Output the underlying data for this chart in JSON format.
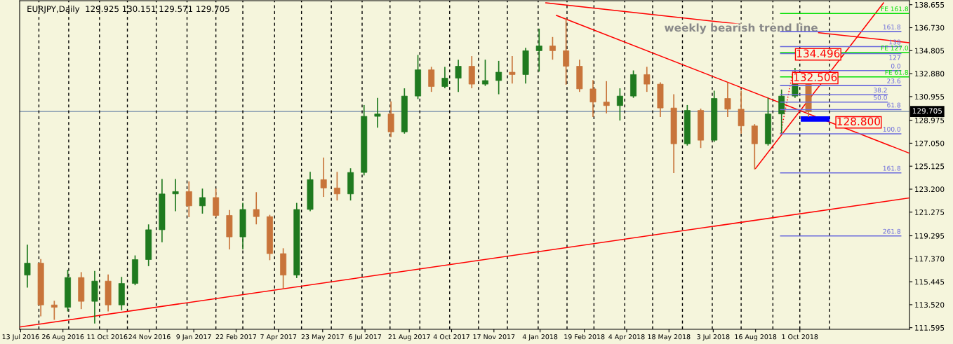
{
  "chart_data": {
    "type": "candlestick",
    "title": "EURJPY,Daily  129.925 130.151 129.571 129.705",
    "x": [
      "2016-07-20",
      "2016-08-03",
      "2016-08-17",
      "2016-08-31",
      "2016-09-14",
      "2016-09-28",
      "2016-10-12",
      "2016-10-26",
      "2016-11-09",
      "2016-11-23",
      "2016-12-07",
      "2016-12-21",
      "2017-01-04",
      "2017-01-18",
      "2017-02-01",
      "2017-02-15",
      "2017-03-01",
      "2017-03-15",
      "2017-03-29",
      "2017-04-12",
      "2017-04-26",
      "2017-05-10",
      "2017-05-24",
      "2017-06-07",
      "2017-06-21",
      "2017-07-05",
      "2017-07-19",
      "2017-08-02",
      "2017-08-16",
      "2017-08-30",
      "2017-09-13",
      "2017-09-27",
      "2017-10-11",
      "2017-10-25",
      "2017-11-08",
      "2017-11-22",
      "2017-12-06",
      "2017-12-20",
      "2018-01-03",
      "2018-01-17",
      "2018-01-31",
      "2018-02-14",
      "2018-02-28",
      "2018-03-14",
      "2018-03-28",
      "2018-04-11",
      "2018-04-25",
      "2018-05-09",
      "2018-05-23",
      "2018-06-06",
      "2018-06-20",
      "2018-07-04",
      "2018-07-18",
      "2018-08-01",
      "2018-08-15",
      "2018-08-29",
      "2018-09-12",
      "2018-09-26",
      "2018-10-10"
    ],
    "ohlc": [
      [
        116.0,
        118.5,
        115.0,
        117.0
      ],
      [
        117.0,
        117.3,
        112.6,
        113.5
      ],
      [
        113.5,
        113.8,
        112.3,
        113.3
      ],
      [
        113.3,
        116.4,
        113.0,
        115.8
      ],
      [
        115.8,
        116.2,
        113.2,
        113.8
      ],
      [
        113.8,
        116.3,
        112.0,
        115.5
      ],
      [
        115.5,
        116.0,
        113.0,
        113.5
      ],
      [
        113.5,
        115.8,
        113.1,
        115.3
      ],
      [
        115.3,
        117.6,
        115.2,
        117.3
      ],
      [
        117.3,
        120.2,
        116.8,
        119.8
      ],
      [
        119.8,
        124.0,
        118.8,
        122.8
      ],
      [
        122.8,
        124.0,
        121.4,
        123.0
      ],
      [
        123.0,
        123.8,
        120.9,
        121.8
      ],
      [
        121.8,
        123.2,
        121.2,
        122.5
      ],
      [
        122.5,
        123.2,
        120.9,
        121.0
      ],
      [
        121.0,
        121.4,
        118.2,
        119.2
      ],
      [
        119.2,
        122.0,
        118.2,
        121.5
      ],
      [
        121.5,
        122.9,
        120.3,
        120.9
      ],
      [
        120.9,
        121.0,
        117.3,
        117.8
      ],
      [
        117.8,
        118.2,
        114.9,
        116.0
      ],
      [
        116.0,
        122.0,
        115.8,
        121.5
      ],
      [
        121.5,
        124.6,
        121.4,
        124.0
      ],
      [
        124.0,
        125.8,
        122.6,
        123.3
      ],
      [
        123.3,
        124.6,
        122.3,
        122.8
      ],
      [
        122.8,
        124.9,
        122.3,
        124.6
      ],
      [
        124.6,
        130.2,
        124.4,
        129.3
      ],
      [
        129.3,
        130.8,
        128.4,
        129.5
      ],
      [
        129.5,
        130.5,
        127.6,
        128.0
      ],
      [
        128.0,
        131.6,
        127.9,
        131.0
      ],
      [
        131.0,
        134.4,
        130.8,
        133.2
      ],
      [
        133.2,
        133.4,
        131.4,
        131.8
      ],
      [
        131.8,
        133.4,
        131.7,
        132.5
      ],
      [
        132.5,
        134.0,
        131.4,
        133.5
      ],
      [
        133.5,
        134.3,
        131.7,
        132.0
      ],
      [
        132.0,
        134.0,
        131.9,
        132.3
      ],
      [
        132.3,
        133.9,
        131.2,
        133.0
      ],
      [
        133.0,
        134.3,
        132.1,
        132.8
      ],
      [
        132.8,
        135.0,
        132.1,
        134.8
      ],
      [
        134.8,
        136.6,
        133.1,
        135.2
      ],
      [
        135.2,
        135.9,
        134.1,
        134.8
      ],
      [
        134.8,
        137.5,
        132.0,
        133.5
      ],
      [
        133.5,
        134.0,
        131.4,
        131.6
      ],
      [
        131.6,
        132.3,
        129.3,
        130.5
      ],
      [
        130.5,
        132.2,
        129.6,
        130.2
      ],
      [
        130.2,
        131.6,
        129.0,
        131.0
      ],
      [
        131.0,
        133.1,
        130.9,
        132.8
      ],
      [
        132.8,
        133.4,
        131.4,
        132.0
      ],
      [
        132.0,
        132.1,
        129.3,
        130.0
      ],
      [
        130.0,
        131.1,
        124.6,
        127.0
      ],
      [
        127.0,
        130.2,
        126.9,
        129.8
      ],
      [
        129.8,
        129.9,
        126.7,
        127.3
      ],
      [
        127.3,
        131.4,
        127.2,
        130.8
      ],
      [
        130.8,
        132.1,
        129.3,
        129.9
      ],
      [
        129.9,
        131.4,
        127.9,
        128.5
      ],
      [
        128.5,
        128.6,
        124.9,
        127.0
      ],
      [
        127.0,
        130.8,
        126.9,
        129.5
      ],
      [
        129.5,
        131.5,
        127.9,
        131.0
      ],
      [
        131.0,
        133.3,
        130.9,
        132.0
      ],
      [
        132.0,
        132.1,
        129.3,
        129.7
      ]
    ],
    "colors": [
      "#1f7a1f",
      "#c8743a",
      "#c8743a",
      "#1f7a1f",
      "#c8743a",
      "#1f7a1f",
      "#c8743a",
      "#1f7a1f",
      "#1f7a1f",
      "#1f7a1f",
      "#1f7a1f",
      "#1f7a1f",
      "#c8743a",
      "#1f7a1f",
      "#c8743a",
      "#c8743a",
      "#1f7a1f",
      "#c8743a",
      "#c8743a",
      "#c8743a",
      "#1f7a1f",
      "#1f7a1f",
      "#c8743a",
      "#c8743a",
      "#1f7a1f",
      "#1f7a1f",
      "#1f7a1f",
      "#c8743a",
      "#1f7a1f",
      "#1f7a1f",
      "#c8743a",
      "#1f7a1f",
      "#1f7a1f",
      "#c8743a",
      "#1f7a1f",
      "#1f7a1f",
      "#c8743a",
      "#1f7a1f",
      "#1f7a1f",
      "#c8743a",
      "#c8743a",
      "#c8743a",
      "#c8743a",
      "#c8743a",
      "#1f7a1f",
      "#1f7a1f",
      "#c8743a",
      "#c8743a",
      "#c8743a",
      "#1f7a1f",
      "#c8743a",
      "#1f7a1f",
      "#c8743a",
      "#c8743a",
      "#c8743a",
      "#1f7a1f",
      "#1f7a1f",
      "#1f7a1f",
      "#c8743a"
    ],
    "series": [
      {
        "type": "line",
        "color": "#ff0000",
        "x": [
          "2016-07-12",
          "2019-01-23"
        ],
        "values": [
          111.65,
          122.47
        ]
      },
      {
        "type": "line",
        "color": "#ff0000",
        "x": [
          "2018-01-10",
          "2019-01-23"
        ],
        "values": [
          138.81,
          135.47
        ]
      },
      {
        "type": "line",
        "color": "#ff0000",
        "x": [
          "2018-01-21",
          "2019-01-23"
        ],
        "values": [
          137.76,
          126.21
        ]
      },
      {
        "type": "line",
        "color": "#ff0000",
        "x": [
          "2018-08-16",
          "2018-12-27"
        ],
        "values": [
          124.93,
          138.81
        ]
      },
      {
        "type": "line",
        "color": "#ff0000",
        "line_style": "dotted",
        "x": [
          "2018-09-11",
          "2018-09-24"
        ],
        "values": [
          127.84,
          133.13
        ]
      },
      {
        "type": "line",
        "name": "FE 161.8",
        "color": "#00e000",
        "x": [
          "2018-09-11",
          "2019-01-22"
        ],
        "values": [
          137.92,
          137.92
        ]
      },
      {
        "type": "line",
        "name": "FE 127.0",
        "color": "#00e000",
        "x": [
          "2018-09-11",
          "2019-01-22"
        ],
        "values": [
          134.64,
          134.64
        ]
      },
      {
        "type": "line",
        "name": "FE 61.8",
        "color": "#00e000",
        "x": [
          "2018-09-11",
          "2019-01-22"
        ],
        "values": [
          132.6,
          132.6
        ]
      },
      {
        "type": "line",
        "name": "161.8",
        "color": "#6b6bdc",
        "x": [
          "2018-09-11",
          "2019-01-14"
        ],
        "values": [
          136.4,
          136.4
        ]
      },
      {
        "type": "line",
        "name": "138",
        "color": "#6b6bdc",
        "x": [
          "2018-09-11",
          "2019-01-14"
        ],
        "values": [
          135.14,
          135.14
        ]
      },
      {
        "type": "line",
        "name": "127",
        "color": "#6b6bdc",
        "x": [
          "2018-09-11",
          "2019-01-14"
        ],
        "values": [
          134.56,
          134.56
        ]
      },
      {
        "type": "line",
        "name": "0.0",
        "color": "#6b6bdc",
        "x": [
          "2018-09-11",
          "2019-01-14"
        ],
        "values": [
          133.13,
          133.13
        ]
      },
      {
        "type": "line",
        "name": "23.6",
        "color": "#6b6bdc",
        "x": [
          "2018-09-11",
          "2019-01-14"
        ],
        "values": [
          131.88,
          131.88
        ]
      },
      {
        "type": "line",
        "name": "38.2",
        "color": "#6b6bdc",
        "x": [
          "2018-09-11",
          "2018-12-31"
        ],
        "values": [
          131.11,
          131.11
        ]
      },
      {
        "type": "line",
        "name": "50.0",
        "color": "#6b6bdc",
        "x": [
          "2018-09-11",
          "2018-12-31"
        ],
        "values": [
          130.49,
          130.49
        ]
      },
      {
        "type": "line",
        "name": "61.8",
        "color": "#6b6bdc",
        "x": [
          "2018-09-11",
          "2019-01-14"
        ],
        "values": [
          129.86,
          129.86
        ]
      },
      {
        "type": "line",
        "name": "100.0",
        "color": "#6b6bdc",
        "x": [
          "2018-09-11",
          "2019-01-14"
        ],
        "values": [
          127.84,
          127.84
        ]
      },
      {
        "type": "line",
        "name": "161.8",
        "color": "#6b6bdc",
        "x": [
          "2018-09-11",
          "2019-01-14"
        ],
        "values": [
          124.57,
          124.57
        ]
      },
      {
        "type": "line",
        "name": "261.8",
        "color": "#6b6bdc",
        "x": [
          "2018-09-11",
          "2019-01-14"
        ],
        "values": [
          119.28,
          119.28
        ]
      },
      {
        "type": "bar",
        "color": "#0000ff",
        "x": [
          "2018-10-17"
        ],
        "base": [
          128.85
        ],
        "values": [
          0.46
        ]
      }
    ],
    "annotations": [
      {
        "text": "weekly bearish trend line",
        "x": "2018-08-01",
        "y": 136.65
      },
      {
        "text": "134.496",
        "x": "2018-09-27",
        "y": 134.496
      },
      {
        "text": "132.506",
        "x": "2018-09-24",
        "y": 132.506
      },
      {
        "text": "128.800",
        "x": "2018-11-08",
        "y": 128.8
      }
    ],
    "ref_lines": [
      {
        "axis": "y",
        "value": 129.705,
        "label": "129.705",
        "color": "#7088a8"
      },
      {
        "axis": "x",
        "value": "2016-08-01",
        "line_style": "dashed",
        "color": "#000000"
      },
      {
        "axis": "x",
        "value": "2016-09-01",
        "line_style": "dashed",
        "color": "#000000"
      },
      {
        "axis": "x",
        "value": "2016-10-03",
        "line_style": "dashed",
        "color": "#000000"
      },
      {
        "axis": "x",
        "value": "2016-11-01",
        "line_style": "dashed",
        "color": "#000000"
      },
      {
        "axis": "x",
        "value": "2016-12-01",
        "line_style": "dashed",
        "color": "#000000"
      },
      {
        "axis": "x",
        "value": "2017-01-02",
        "line_style": "dashed",
        "color": "#000000"
      },
      {
        "axis": "x",
        "value": "2017-02-01",
        "line_style": "dashed",
        "color": "#000000"
      },
      {
        "axis": "x",
        "value": "2017-03-01",
        "line_style": "dashed",
        "color": "#000000"
      },
      {
        "axis": "x",
        "value": "2017-04-03",
        "line_style": "dashed",
        "color": "#000000"
      },
      {
        "axis": "x",
        "value": "2017-05-01",
        "line_style": "dashed",
        "color": "#000000"
      },
      {
        "axis": "x",
        "value": "2017-06-01",
        "line_style": "dashed",
        "color": "#000000"
      },
      {
        "axis": "x",
        "value": "2017-07-03",
        "line_style": "dashed",
        "color": "#000000"
      },
      {
        "axis": "x",
        "value": "2017-08-01",
        "line_style": "dashed",
        "color": "#000000"
      },
      {
        "axis": "x",
        "value": "2017-09-01",
        "line_style": "dashed",
        "color": "#000000"
      },
      {
        "axis": "x",
        "value": "2017-10-02",
        "line_style": "dashed",
        "color": "#000000"
      },
      {
        "axis": "x",
        "value": "2017-11-01",
        "line_style": "dashed",
        "color": "#000000"
      },
      {
        "axis": "x",
        "value": "2017-12-01",
        "line_style": "dashed",
        "color": "#000000"
      },
      {
        "axis": "x",
        "value": "2018-01-02",
        "line_style": "dashed",
        "color": "#000000"
      },
      {
        "axis": "x",
        "value": "2018-02-01",
        "line_style": "dashed",
        "color": "#000000"
      },
      {
        "axis": "x",
        "value": "2018-03-01",
        "line_style": "dashed",
        "color": "#000000"
      },
      {
        "axis": "x",
        "value": "2018-04-02",
        "line_style": "dashed",
        "color": "#000000"
      },
      {
        "axis": "x",
        "value": "2018-05-01",
        "line_style": "dashed",
        "color": "#000000"
      },
      {
        "axis": "x",
        "value": "2018-06-01",
        "line_style": "dashed",
        "color": "#000000"
      },
      {
        "axis": "x",
        "value": "2018-07-02",
        "line_style": "dashed",
        "color": "#000000"
      },
      {
        "axis": "x",
        "value": "2018-08-01",
        "line_style": "dashed",
        "color": "#000000"
      },
      {
        "axis": "x",
        "value": "2018-09-03",
        "line_style": "dashed",
        "color": "#000000"
      },
      {
        "axis": "x",
        "value": "2018-10-01",
        "line_style": "dashed",
        "color": "#000000"
      },
      {
        "axis": "x",
        "value": "2018-11-01",
        "line_style": "dashed",
        "color": "#000000"
      }
    ],
    "xlim": [
      "2016-07-12",
      "2019-01-23"
    ],
    "xticks": [
      {
        "value": "2016-07-13",
        "label": "13 Jul 2016"
      },
      {
        "value": "2016-08-26",
        "label": "26 Aug 2016"
      },
      {
        "value": "2016-10-11",
        "label": "11 Oct 2016"
      },
      {
        "value": "2016-11-24",
        "label": "24 Nov 2016"
      },
      {
        "value": "2017-01-09",
        "label": "9 Jan 2017"
      },
      {
        "value": "2017-02-22",
        "label": "22 Feb 2017"
      },
      {
        "value": "2017-04-07",
        "label": "7 Apr 2017"
      },
      {
        "value": "2017-05-23",
        "label": "23 May 2017"
      },
      {
        "value": "2017-07-06",
        "label": "6 Jul 2017"
      },
      {
        "value": "2017-08-21",
        "label": "21 Aug 2017"
      },
      {
        "value": "2017-10-04",
        "label": "4 Oct 2017"
      },
      {
        "value": "2017-11-17",
        "label": "17 Nov 2017"
      },
      {
        "value": "2018-01-04",
        "label": "4 Jan 2018"
      },
      {
        "value": "2018-02-19",
        "label": "19 Feb 2018"
      },
      {
        "value": "2018-04-04",
        "label": "4 Apr 2018"
      },
      {
        "value": "2018-05-18",
        "label": "18 May 2018"
      },
      {
        "value": "2018-07-03",
        "label": "3 Jul 2018"
      },
      {
        "value": "2018-08-16",
        "label": "16 Aug 2018"
      },
      {
        "value": "2018-10-01",
        "label": "1 Oct 2018"
      }
    ],
    "ylim": [
      111.46,
      138.99
    ],
    "yticks": [
      138.655,
      {
        "value": 136.73,
        "label": "136.730"
      },
      134.805,
      {
        "value": 132.88,
        "label": "132.880"
      },
      130.955,
      128.975,
      {
        "value": 127.05,
        "label": "127.050"
      },
      125.125,
      {
        "value": 123.2,
        "label": "123.200"
      },
      121.275,
      119.295,
      {
        "value": 117.37,
        "label": "117.370"
      },
      115.445,
      {
        "value": 113.52,
        "label": "113.520"
      },
      111.595
    ],
    "grid": false,
    "legend": false
  }
}
